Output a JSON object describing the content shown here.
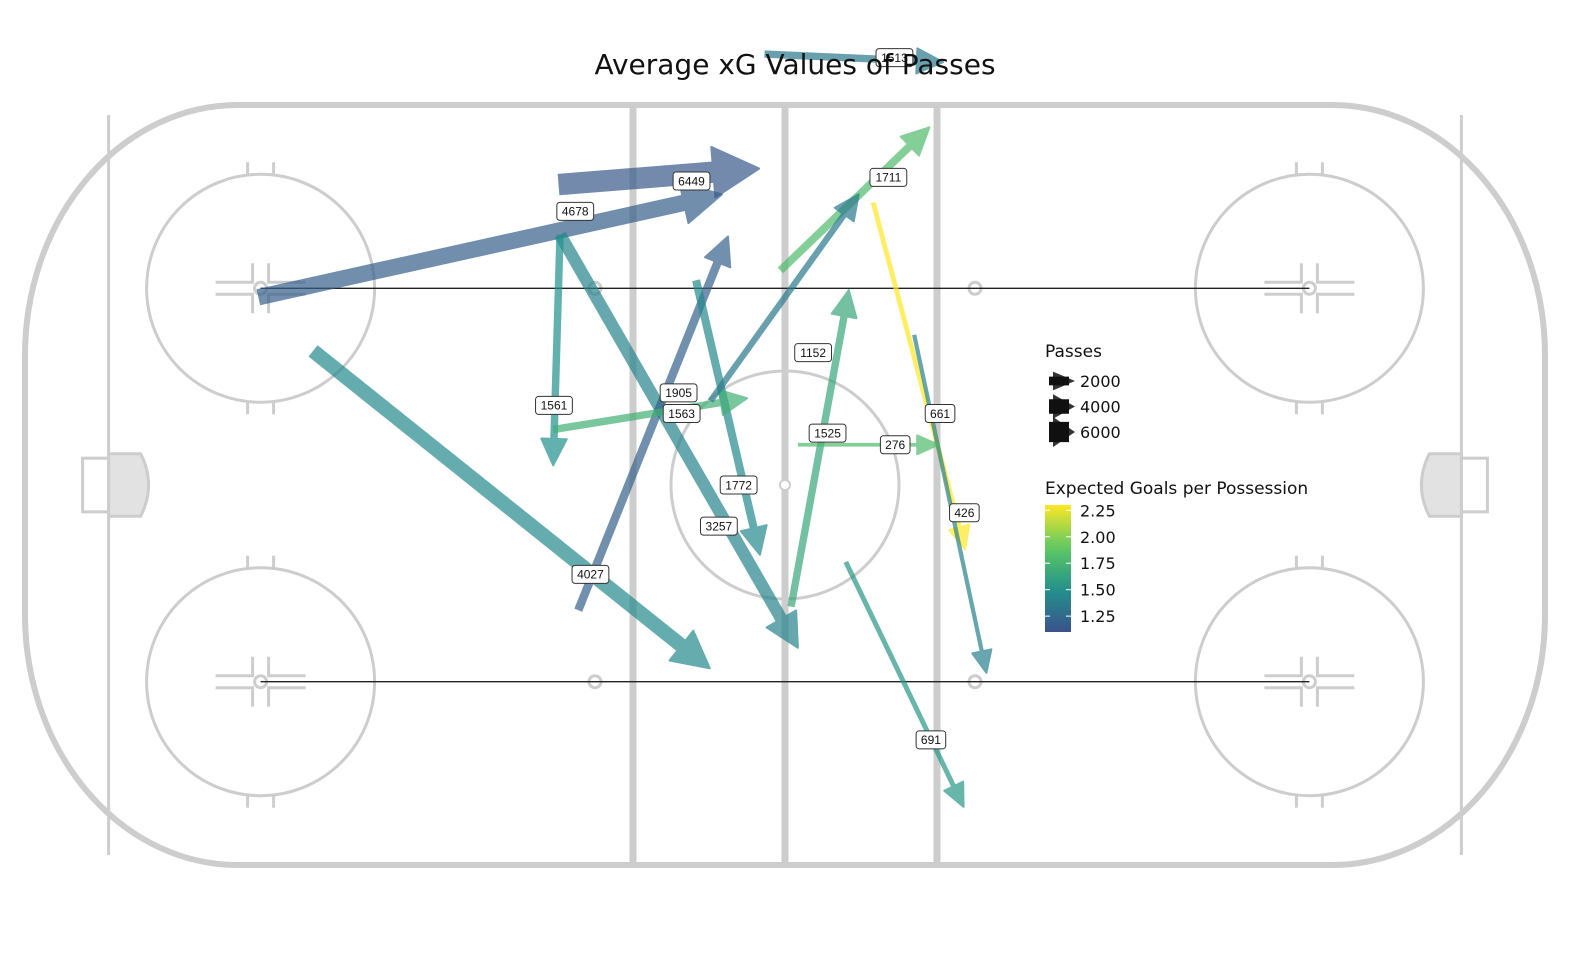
{
  "chart_data": {
    "type": "flow-map",
    "title": "Average xG Values of Passes",
    "xlim": [
      -100,
      100
    ],
    "ylim": [
      -42.5,
      42.5
    ],
    "grid": false,
    "size_legend": {
      "title": "Passes",
      "entries": [
        {
          "value": 2000,
          "label": "2000"
        },
        {
          "value": 4000,
          "label": "4000"
        },
        {
          "value": 6000,
          "label": "6000"
        }
      ]
    },
    "color_legend": {
      "title": "Expected Goals per Possession",
      "min": 1.1,
      "max": 2.3,
      "ticks": [
        {
          "value": 2.25,
          "label": "2.25"
        },
        {
          "value": 2.0,
          "label": "2.00"
        },
        {
          "value": 1.75,
          "label": "1.75"
        },
        {
          "value": 1.5,
          "label": "1.50"
        },
        {
          "value": 1.25,
          "label": "1.25"
        }
      ],
      "colors": [
        "#3b528b",
        "#21918c",
        "#5ec962",
        "#fde725"
      ]
    },
    "passes": [
      {
        "label": "6449",
        "passes": 6449,
        "xg": 1.15,
        "x1": -29.8,
        "y1": 33.6,
        "x2": -3.4,
        "y2": 35.4,
        "lx": -12.3,
        "ly": 34.0
      },
      {
        "label": "4678",
        "passes": 4678,
        "xg": 1.18,
        "x1": -69.3,
        "y1": 21.0,
        "x2": -8.3,
        "y2": 32.5,
        "lx": -27.6,
        "ly": 30.6
      },
      {
        "label": "4027",
        "passes": 4027,
        "xg": 1.45,
        "x1": -62.1,
        "y1": 15.0,
        "x2": -9.9,
        "y2": -20.5,
        "lx": -25.6,
        "ly": -10.0
      },
      {
        "label": "3257",
        "passes": 3257,
        "xg": 1.42,
        "x1": -29.6,
        "y1": 28.0,
        "x2": 1.7,
        "y2": -18.2,
        "lx": -8.7,
        "ly": -4.6
      },
      {
        "label": "1905",
        "passes": 1905,
        "xg": 1.2,
        "x1": -27.2,
        "y1": -14.0,
        "x2": -7.5,
        "y2": 27.8,
        "lx": -14.0,
        "ly": 10.3
      },
      {
        "label": "1772",
        "passes": 1772,
        "xg": 1.45,
        "x1": -11.7,
        "y1": 22.9,
        "x2": -3.3,
        "y2": -7.8,
        "lx": -6.1,
        "ly": 0.0
      },
      {
        "label": "1711",
        "passes": 1711,
        "xg": 1.8,
        "x1": -0.6,
        "y1": 24.0,
        "x2": 19.0,
        "y2": 40.0,
        "lx": 13.6,
        "ly": 34.4
      },
      {
        "label": "1561",
        "passes": 1561,
        "xg": 1.5,
        "x1": -29.6,
        "y1": 28.0,
        "x2": -30.5,
        "y2": 2.2,
        "lx": -30.4,
        "ly": 8.9
      },
      {
        "label": "1563",
        "passes": 1563,
        "xg": 1.72,
        "x1": -30.5,
        "y1": 6.2,
        "x2": -5.0,
        "y2": 9.7,
        "lx": -13.6,
        "ly": 8.0
      },
      {
        "label": "1525",
        "passes": 1525,
        "xg": 1.65,
        "x1": 0.8,
        "y1": -13.6,
        "x2": 8.4,
        "y2": 21.8,
        "lx": 5.6,
        "ly": 5.8
      },
      {
        "label": "1513",
        "passes": 1513,
        "xg": 1.35,
        "x1": -2.7,
        "y1": 48.2,
        "x2": 20.8,
        "y2": 47.3,
        "lx": 14.4,
        "ly": 47.8
      },
      {
        "label": "1152",
        "passes": 1152,
        "xg": 1.35,
        "x1": -9.8,
        "y1": 9.4,
        "x2": 9.7,
        "y2": 32.5,
        "lx": 3.7,
        "ly": 14.8
      },
      {
        "label": "691",
        "passes": 691,
        "xg": 1.55,
        "x1": 8.0,
        "y1": -8.6,
        "x2": 23.5,
        "y2": -36.0,
        "lx": 19.2,
        "ly": -28.5
      },
      {
        "label": "661",
        "passes": 661,
        "xg": 2.3,
        "x1": 11.6,
        "y1": 31.6,
        "x2": 23.7,
        "y2": -7.2,
        "lx": 20.4,
        "ly": 8.0
      },
      {
        "label": "426",
        "passes": 426,
        "xg": 1.4,
        "x1": 17.0,
        "y1": 16.8,
        "x2": 26.5,
        "y2": -21.0,
        "lx": 23.6,
        "ly": -3.1
      },
      {
        "label": "276",
        "passes": 276,
        "xg": 1.8,
        "x1": 1.7,
        "y1": 4.5,
        "x2": 20.2,
        "y2": 4.5,
        "lx": 14.5,
        "ly": 4.5
      }
    ]
  }
}
